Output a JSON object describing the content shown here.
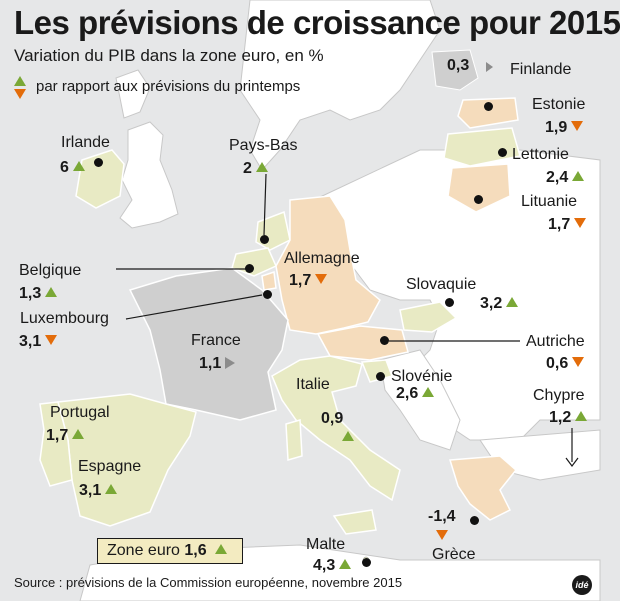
{
  "title": "Les prévisions de croissance pour 2015",
  "subtitle": "Variation du PIB dans la zone euro, en %",
  "legend": {
    "text": "par rapport aux prévisions du printemps"
  },
  "countries": {
    "finlande": {
      "name": "Finlande",
      "value": "0,3",
      "trend": "unchanged"
    },
    "estonie": {
      "name": "Estonie",
      "value": "1,9",
      "trend": "down"
    },
    "lettonie": {
      "name": "Lettonie",
      "value": "2,4",
      "trend": "up"
    },
    "lituanie": {
      "name": "Lituanie",
      "value": "1,7",
      "trend": "down"
    },
    "irlande": {
      "name": "Irlande",
      "value": "6",
      "trend": "up"
    },
    "paysbas": {
      "name": "Pays-Bas",
      "value": "2",
      "trend": "up"
    },
    "allemagne": {
      "name": "Allemagne",
      "value": "1,7",
      "trend": "down"
    },
    "belgique": {
      "name": "Belgique",
      "value": "1,3",
      "trend": "up"
    },
    "luxembourg": {
      "name": "Luxembourg",
      "value": "3,1",
      "trend": "down"
    },
    "slovaquie": {
      "name": "Slovaquie",
      "value": "3,2",
      "trend": "up"
    },
    "autriche": {
      "name": "Autriche",
      "value": "0,6",
      "trend": "down"
    },
    "france": {
      "name": "France",
      "value": "1,1",
      "trend": "unchanged"
    },
    "slovenie": {
      "name": "Slovénie",
      "value": "2,6",
      "trend": "up"
    },
    "italie": {
      "name": "Italie",
      "value": "0,9",
      "trend": "up"
    },
    "chypre": {
      "name": "Chypre",
      "value": "1,2",
      "trend": "up"
    },
    "portugal": {
      "name": "Portugal",
      "value": "1,7",
      "trend": "up"
    },
    "espagne": {
      "name": "Espagne",
      "value": "3,1",
      "trend": "up"
    },
    "grece": {
      "name": "Grèce",
      "value": "-1,4",
      "trend": "down"
    },
    "malte": {
      "name": "Malte",
      "value": "4,3",
      "trend": "up"
    }
  },
  "zone_euro": {
    "label": "Zone euro",
    "value": "1,6",
    "trend": "up"
  },
  "source": "Source : prévisions de la Commission européenne, novembre 2015",
  "logo": "idé",
  "colors": {
    "up": "#7aa836",
    "down": "#e36c0a",
    "unchanged": "#8c8c8c",
    "up_country": "#e8eac4",
    "down_country": "#f5dcbc",
    "unchanged_country": "#cfcfcf",
    "non_member": "#ffffff",
    "sea": "#e6e7e8"
  }
}
